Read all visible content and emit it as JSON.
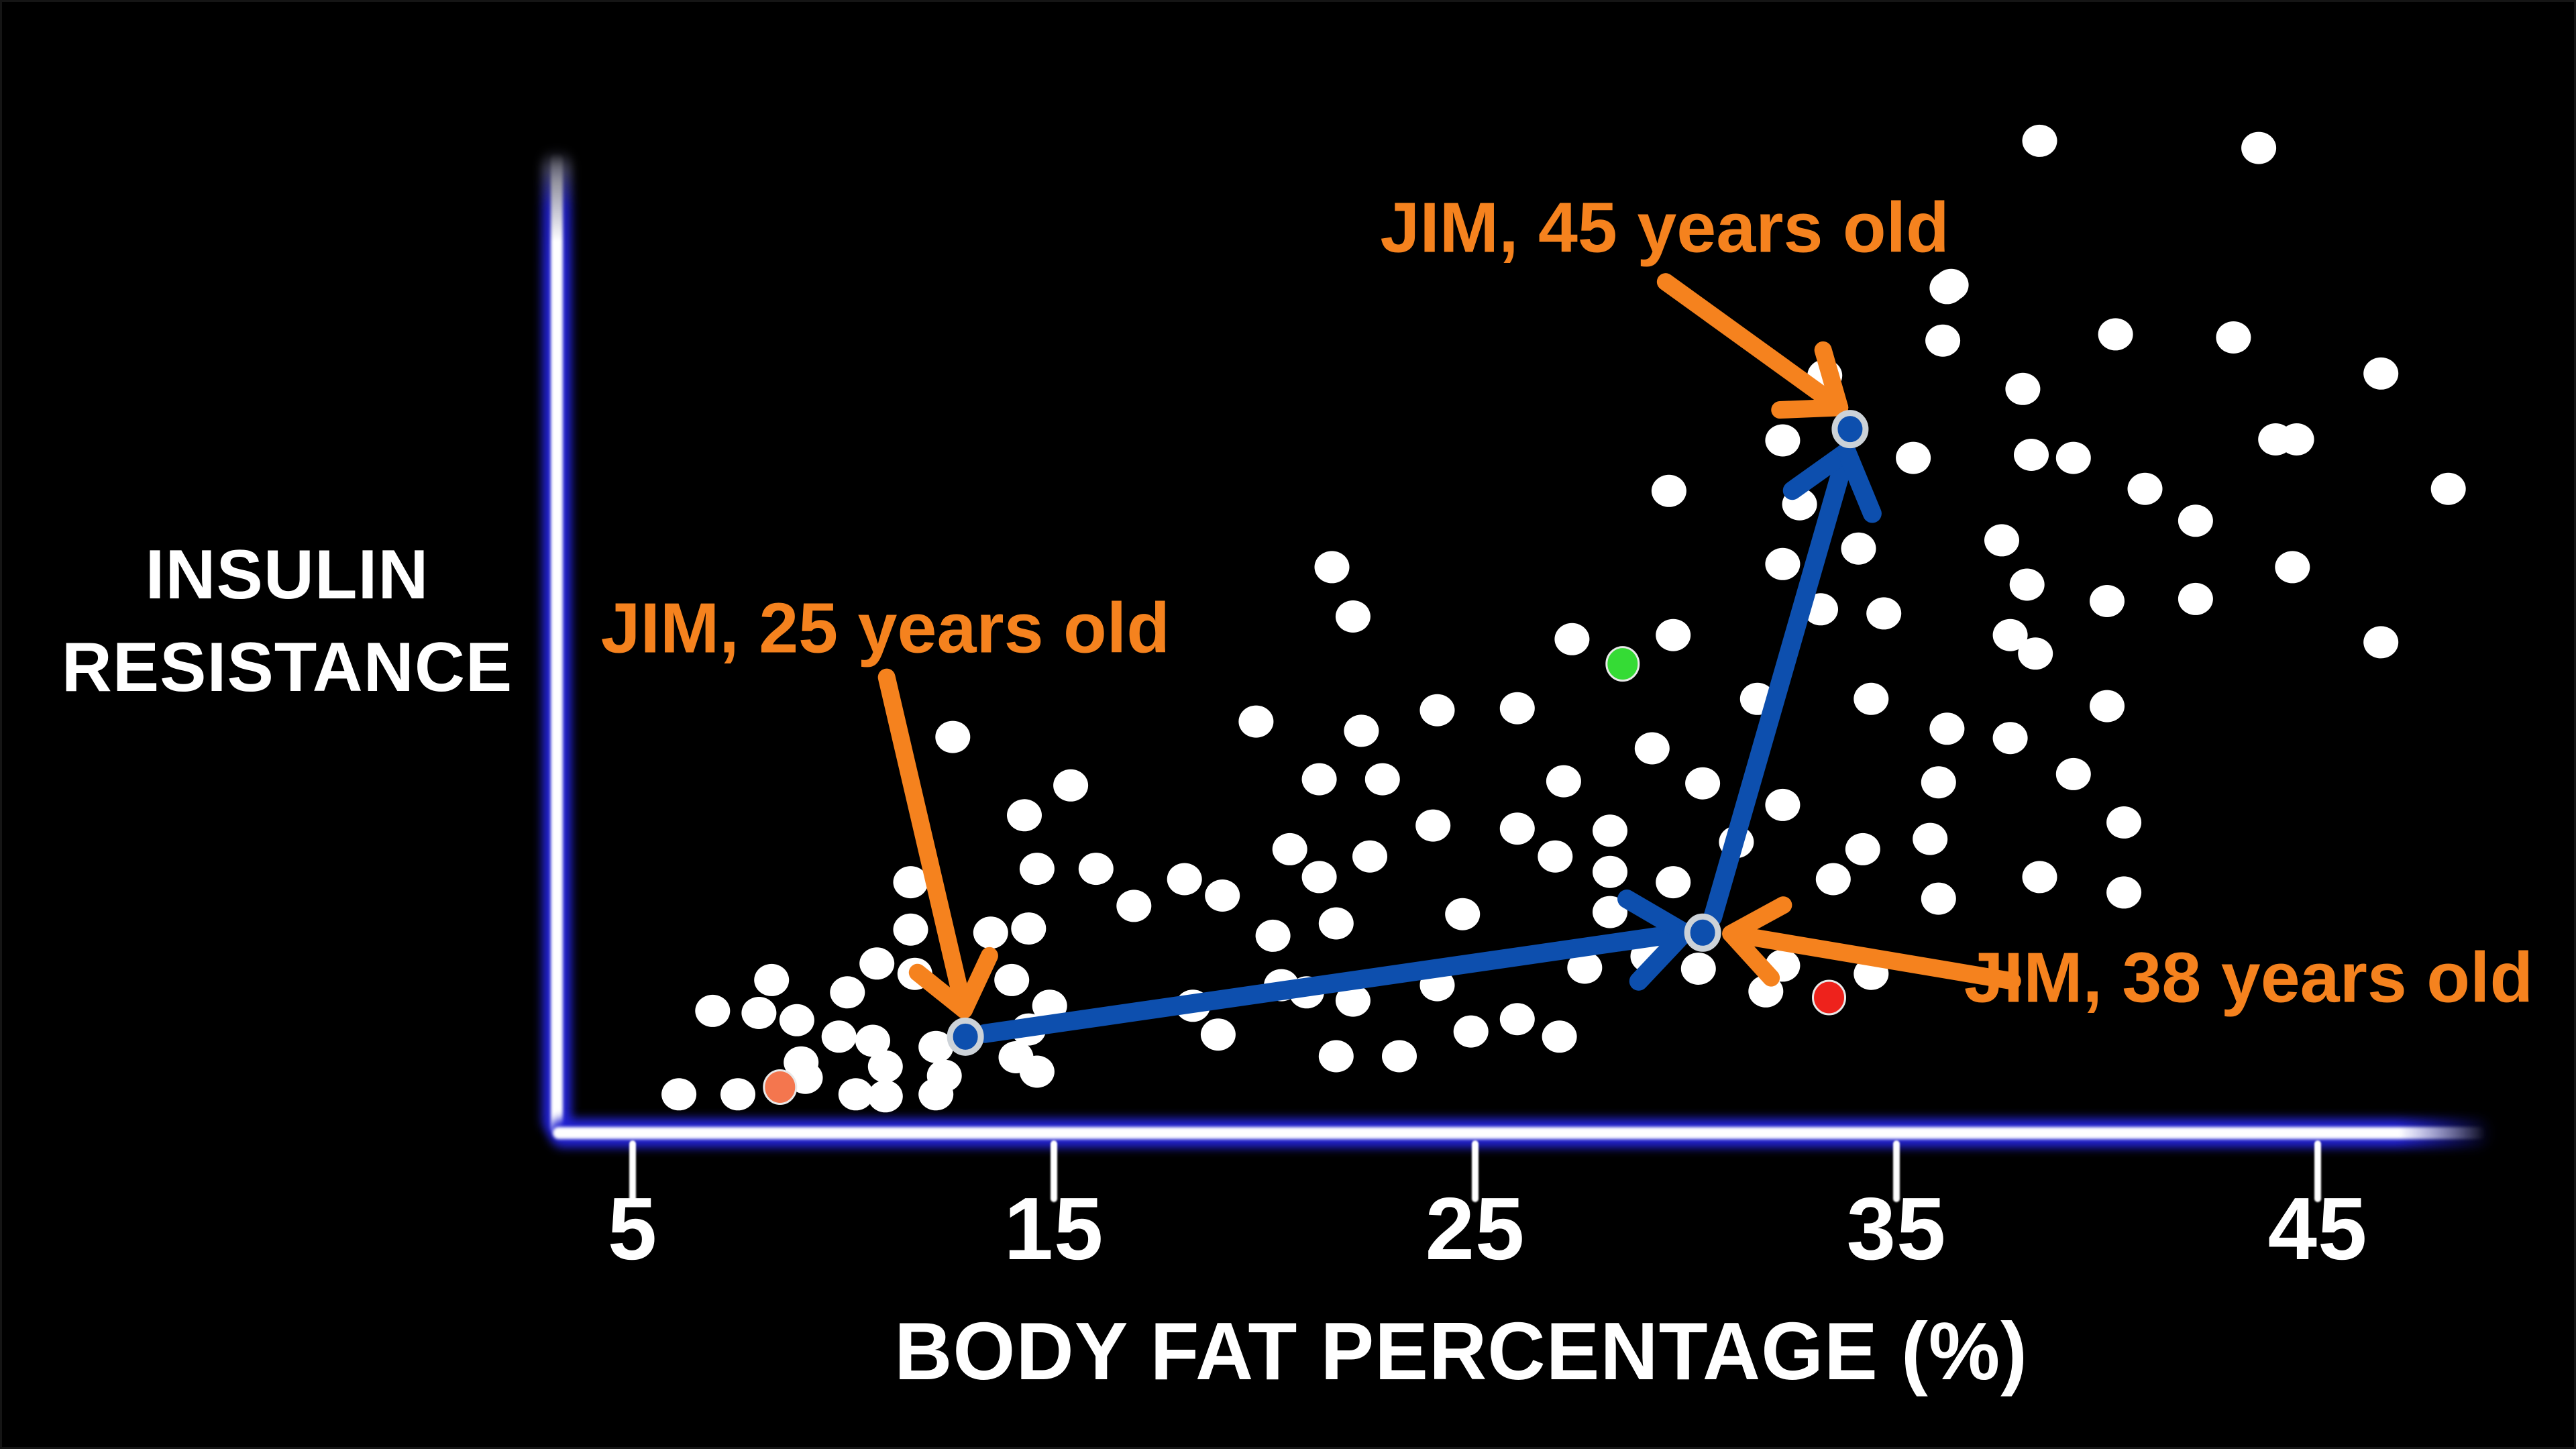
{
  "frame": {
    "background": "#000000",
    "border": "#151515"
  },
  "y_axis": {
    "label_line1": "INSULIN",
    "label_line2": "RESISTANCE"
  },
  "x_axis": {
    "label": "BODY FAT PERCENTAGE (%)",
    "tick_labels": [
      "5",
      "15",
      "25",
      "35",
      "45"
    ]
  },
  "colors": {
    "white_dot": "#ffffff",
    "jim_dot": "#0d4fae",
    "jim_ring": "#ccd2d8",
    "blue_arrow": "#0d4fae",
    "orange": "#f5821e",
    "orange_dot": "#f4764e",
    "red_dot": "#ee221c",
    "green_dot": "#35db35",
    "light_ring": "#e9e9e9",
    "axis_blue": "#2222d2",
    "axis_core": "#ffffff",
    "text": "#ffffff"
  },
  "chart_data": {
    "type": "scatter",
    "xlabel": "BODY FAT PERCENTAGE (%)",
    "ylabel": "INSULIN RESISTANCE",
    "x_ticks": [
      5,
      15,
      25,
      35,
      45
    ],
    "x_range": [
      3.3,
      50
    ],
    "y_range": [
      0,
      10.5
    ],
    "y_scale_note": "no numeric y scale shown (arbitrary units 0-10)",
    "grid": false,
    "white_points": [
      [
        15.4,
        3.35
      ],
      [
        14.3,
        3.06
      ],
      [
        11.6,
        2.41
      ],
      [
        14.6,
        2.54
      ],
      [
        16.0,
        2.54
      ],
      [
        18.1,
        2.44
      ],
      [
        16.9,
        2.18
      ],
      [
        19.0,
        2.28
      ],
      [
        11.6,
        1.95
      ],
      [
        13.5,
        1.92
      ],
      [
        14.4,
        1.96
      ],
      [
        10.8,
        1.62
      ],
      [
        11.7,
        1.52
      ],
      [
        8.3,
        1.46
      ],
      [
        10.1,
        1.34
      ],
      [
        6.9,
        1.16
      ],
      [
        8.0,
        1.14
      ],
      [
        8.9,
        1.07
      ],
      [
        9.9,
        0.91
      ],
      [
        10.7,
        0.87
      ],
      [
        9.0,
        0.66
      ],
      [
        11.0,
        0.62
      ],
      [
        12.2,
        0.81
      ],
      [
        12.4,
        0.53
      ],
      [
        6.1,
        0.35
      ],
      [
        7.5,
        0.35
      ],
      [
        9.1,
        0.51
      ],
      [
        10.3,
        0.35
      ],
      [
        11.0,
        0.33
      ],
      [
        12.2,
        0.35
      ],
      [
        14.1,
        0.71
      ],
      [
        14.6,
        0.57
      ],
      [
        14.4,
        0.98
      ],
      [
        14.9,
        1.21
      ],
      [
        14.0,
        1.46
      ],
      [
        18.3,
        1.21
      ],
      [
        18.9,
        0.93
      ],
      [
        12.6,
        3.82
      ],
      [
        21.3,
        3.41
      ],
      [
        22.8,
        3.41
      ],
      [
        27.1,
        3.39
      ],
      [
        30.4,
        3.37
      ],
      [
        32.3,
        3.16
      ],
      [
        24.0,
        2.96
      ],
      [
        26.0,
        2.93
      ],
      [
        28.2,
        2.91
      ],
      [
        20.6,
        2.73
      ],
      [
        22.5,
        2.66
      ],
      [
        31.2,
        2.8
      ],
      [
        34.2,
        2.73
      ],
      [
        26.9,
        2.66
      ],
      [
        28.2,
        2.51
      ],
      [
        29.7,
        2.41
      ],
      [
        21.3,
        2.46
      ],
      [
        33.5,
        2.44
      ],
      [
        21.7,
        2.01
      ],
      [
        24.7,
        2.1
      ],
      [
        28.2,
        2.12
      ],
      [
        20.2,
        1.89
      ],
      [
        29.1,
        1.69
      ],
      [
        30.3,
        1.57
      ],
      [
        27.6,
        1.58
      ],
      [
        24.1,
        1.41
      ],
      [
        20.4,
        1.41
      ],
      [
        21.0,
        1.34
      ],
      [
        22.1,
        1.26
      ],
      [
        26.0,
        1.08
      ],
      [
        24.9,
        0.96
      ],
      [
        27.0,
        0.91
      ],
      [
        21.7,
        0.72
      ],
      [
        23.2,
        0.72
      ],
      [
        32.3,
        1.6
      ],
      [
        31.9,
        1.35
      ],
      [
        34.4,
        1.52
      ],
      [
        36.0,
        3.38
      ],
      [
        39.2,
        3.46
      ],
      [
        40.4,
        2.99
      ],
      [
        35.8,
        2.83
      ],
      [
        38.4,
        2.46
      ],
      [
        40.4,
        2.31
      ],
      [
        36.0,
        2.25
      ],
      [
        32.3,
        6.7
      ],
      [
        29.6,
        6.21
      ],
      [
        32.7,
        6.08
      ],
      [
        21.6,
        5.47
      ],
      [
        34.1,
        5.65
      ],
      [
        32.3,
        5.5
      ],
      [
        22.1,
        4.99
      ],
      [
        27.3,
        4.77
      ],
      [
        29.7,
        4.81
      ],
      [
        33.2,
        5.06
      ],
      [
        34.7,
        5.02
      ],
      [
        24.1,
        4.08
      ],
      [
        26.0,
        4.1
      ],
      [
        19.8,
        3.97
      ],
      [
        22.3,
        3.88
      ],
      [
        29.2,
        3.71
      ],
      [
        31.7,
        4.19
      ],
      [
        34.4,
        4.19
      ],
      [
        33.3,
        7.33
      ],
      [
        36.3,
        8.21
      ],
      [
        38.4,
        9.61
      ],
      [
        43.6,
        9.54
      ],
      [
        36.2,
        8.18
      ],
      [
        36.1,
        7.67
      ],
      [
        40.2,
        7.73
      ],
      [
        43.0,
        7.7
      ],
      [
        46.5,
        7.35
      ],
      [
        38.0,
        7.2
      ],
      [
        35.4,
        6.53
      ],
      [
        38.2,
        6.56
      ],
      [
        39.2,
        6.53
      ],
      [
        44.0,
        6.71
      ],
      [
        44.5,
        6.71
      ],
      [
        40.9,
        6.23
      ],
      [
        48.1,
        6.23
      ],
      [
        42.1,
        5.92
      ],
      [
        37.5,
        5.73
      ],
      [
        44.4,
        5.47
      ],
      [
        38.1,
        5.3
      ],
      [
        40.0,
        5.14
      ],
      [
        42.1,
        5.16
      ],
      [
        37.7,
        4.81
      ],
      [
        38.3,
        4.63
      ],
      [
        46.5,
        4.74
      ],
      [
        40.0,
        4.12
      ],
      [
        36.2,
        3.9
      ],
      [
        37.7,
        3.81
      ]
    ],
    "highlight_points": [
      {
        "id": "orange-point",
        "color_key": "orange_dot",
        "x": 8.5,
        "y": 0.42
      },
      {
        "id": "red-point",
        "color_key": "red_dot",
        "x": 33.4,
        "y": 1.29
      },
      {
        "id": "green-point",
        "color_key": "green_dot",
        "x": 28.5,
        "y": 4.53
      }
    ],
    "jim_points": [
      {
        "id": "jim25",
        "label": "JIM, 25 years old",
        "x": 12.9,
        "y": 0.91
      },
      {
        "id": "jim38",
        "label": "JIM, 38 years old",
        "x": 30.4,
        "y": 1.92
      },
      {
        "id": "jim45",
        "label": "JIM, 45 years old",
        "x": 33.9,
        "y": 6.81
      }
    ],
    "blue_arrows": [
      {
        "from": [
          13.36,
          0.94
        ],
        "to": [
          29.97,
          1.92
        ]
      },
      {
        "from": [
          30.64,
          2.07
        ],
        "to": [
          33.82,
          6.59
        ]
      }
    ],
    "orange_arrows": [
      {
        "from": [
          11.03,
          4.4
        ],
        "to": [
          12.87,
          1.17
        ]
      },
      {
        "from": [
          29.52,
          8.24
        ],
        "to": [
          33.65,
          7.02
        ]
      },
      {
        "from": [
          37.75,
          1.45
        ],
        "to": [
          31.07,
          1.91
        ]
      }
    ],
    "annotations": [
      {
        "id": "jim25",
        "text": "JIM, 25 years old",
        "cx": 11.0,
        "cy": 4.87
      },
      {
        "id": "jim45",
        "text": "JIM, 45 years old",
        "cx": 29.5,
        "cy": 8.76
      },
      {
        "id": "jim38",
        "text": "JIM, 38 years old",
        "cx": 43.36,
        "cy": 1.48
      }
    ]
  }
}
